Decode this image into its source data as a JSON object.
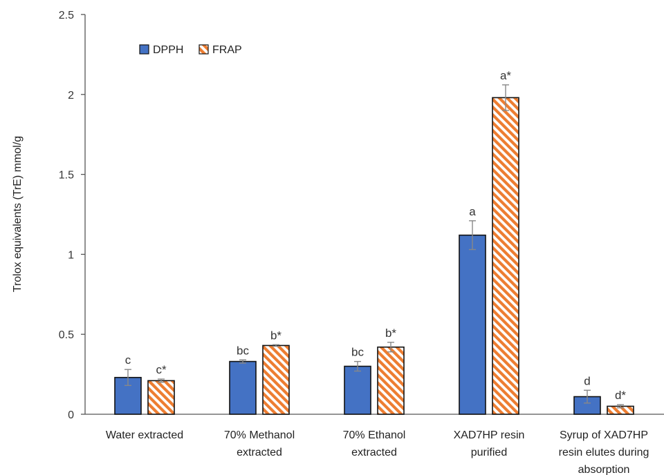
{
  "chart_data": {
    "type": "bar",
    "ylabel": "Trolox equivalents (TrE) mmol/g",
    "ylim": [
      0,
      2.5
    ],
    "yticks": [
      "0",
      "0.5",
      "1",
      "1.5",
      "2",
      "2.5"
    ],
    "grid": false,
    "legend_position": "top-left",
    "categories": [
      [
        "Water extracted"
      ],
      [
        "70% Methanol",
        "extracted"
      ],
      [
        "70% Ethanol",
        "extracted"
      ],
      [
        "XAD7HP resin",
        "purified"
      ],
      [
        "Syrup of XAD7HP",
        "resin elutes during",
        "absorption"
      ]
    ],
    "series": [
      {
        "name": "DPPH",
        "color": "#4472c4",
        "pattern": "solid",
        "values": [
          0.23,
          0.33,
          0.3,
          1.12,
          0.11
        ],
        "errors": [
          0.05,
          0.01,
          0.03,
          0.09,
          0.04
        ],
        "labels": [
          "c",
          "bc",
          "bc",
          "a",
          "d"
        ]
      },
      {
        "name": "FRAP",
        "color": "#ed7d31",
        "pattern": "diagonal-stripes",
        "values": [
          0.21,
          0.43,
          0.42,
          1.98,
          0.05
        ],
        "errors": [
          0.01,
          0.005,
          0.03,
          0.08,
          0.01
        ],
        "labels": [
          "c*",
          "b*",
          "b*",
          "a*",
          "d*"
        ]
      }
    ]
  }
}
